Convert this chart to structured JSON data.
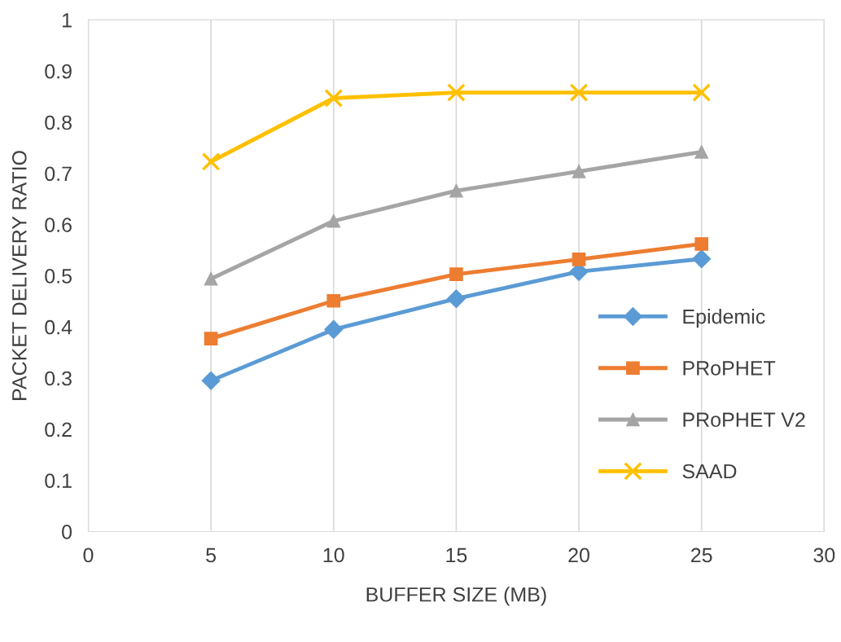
{
  "chart_data": {
    "type": "line",
    "xlabel": "BUFFER SIZE (MB)",
    "ylabel": "PACKET DELIVERY RATIO",
    "x": [
      5,
      10,
      15,
      20,
      25
    ],
    "series": [
      {
        "name": "Epidemic",
        "color": "#5b9bd5",
        "marker": "diamond",
        "values": [
          0.295,
          0.395,
          0.455,
          0.508,
          0.533
        ]
      },
      {
        "name": "PRoPHET",
        "color": "#ed7d31",
        "marker": "square",
        "values": [
          0.377,
          0.451,
          0.503,
          0.532,
          0.562
        ]
      },
      {
        "name": "PRoPHET V2",
        "color": "#a5a5a5",
        "marker": "triangle",
        "values": [
          0.494,
          0.607,
          0.666,
          0.704,
          0.742
        ]
      },
      {
        "name": "SAAD",
        "color": "#ffc000",
        "marker": "cross",
        "values": [
          0.723,
          0.847,
          0.858,
          0.858,
          0.858
        ]
      }
    ],
    "xlim": [
      0,
      30
    ],
    "xticks": [
      0,
      5,
      10,
      15,
      20,
      25,
      30
    ],
    "ylim": [
      0,
      1
    ],
    "yticks": [
      0,
      0.1,
      0.2,
      0.3,
      0.4,
      0.5,
      0.6,
      0.7,
      0.8,
      0.9,
      1
    ],
    "grid": "x",
    "legend": "bottom right",
    "line_style": "solid"
  }
}
